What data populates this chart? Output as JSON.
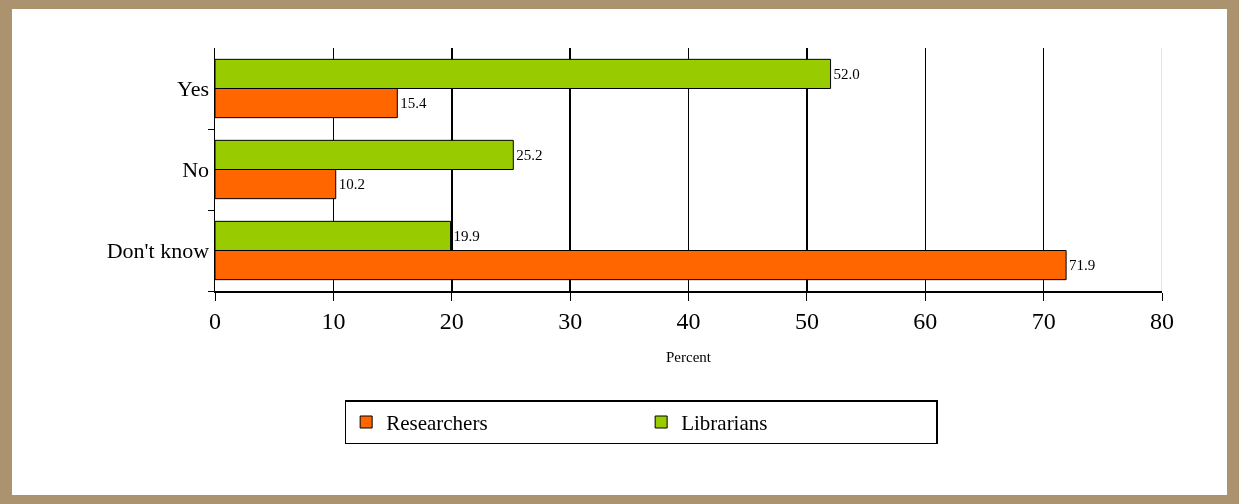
{
  "chart_data": {
    "type": "bar",
    "orientation": "horizontal",
    "xlabel": "Percent",
    "categories": [
      "Yes",
      "No",
      "Don't know"
    ],
    "series": [
      {
        "name": "Researchers",
        "color": "#ff6600",
        "values": [
          15.4,
          10.2,
          71.9
        ],
        "value_labels": [
          "15.4",
          "10.2",
          "71.9"
        ]
      },
      {
        "name": "Librarians",
        "color": "#99cc00",
        "values": [
          52.0,
          25.2,
          19.9
        ],
        "value_labels": [
          "52.0",
          "25.2",
          "19.9"
        ]
      }
    ],
    "xlim": [
      0,
      80
    ],
    "xticks": [
      0,
      10,
      20,
      30,
      40,
      50,
      60,
      70,
      80
    ],
    "grid": "x",
    "legend": "bottom"
  }
}
